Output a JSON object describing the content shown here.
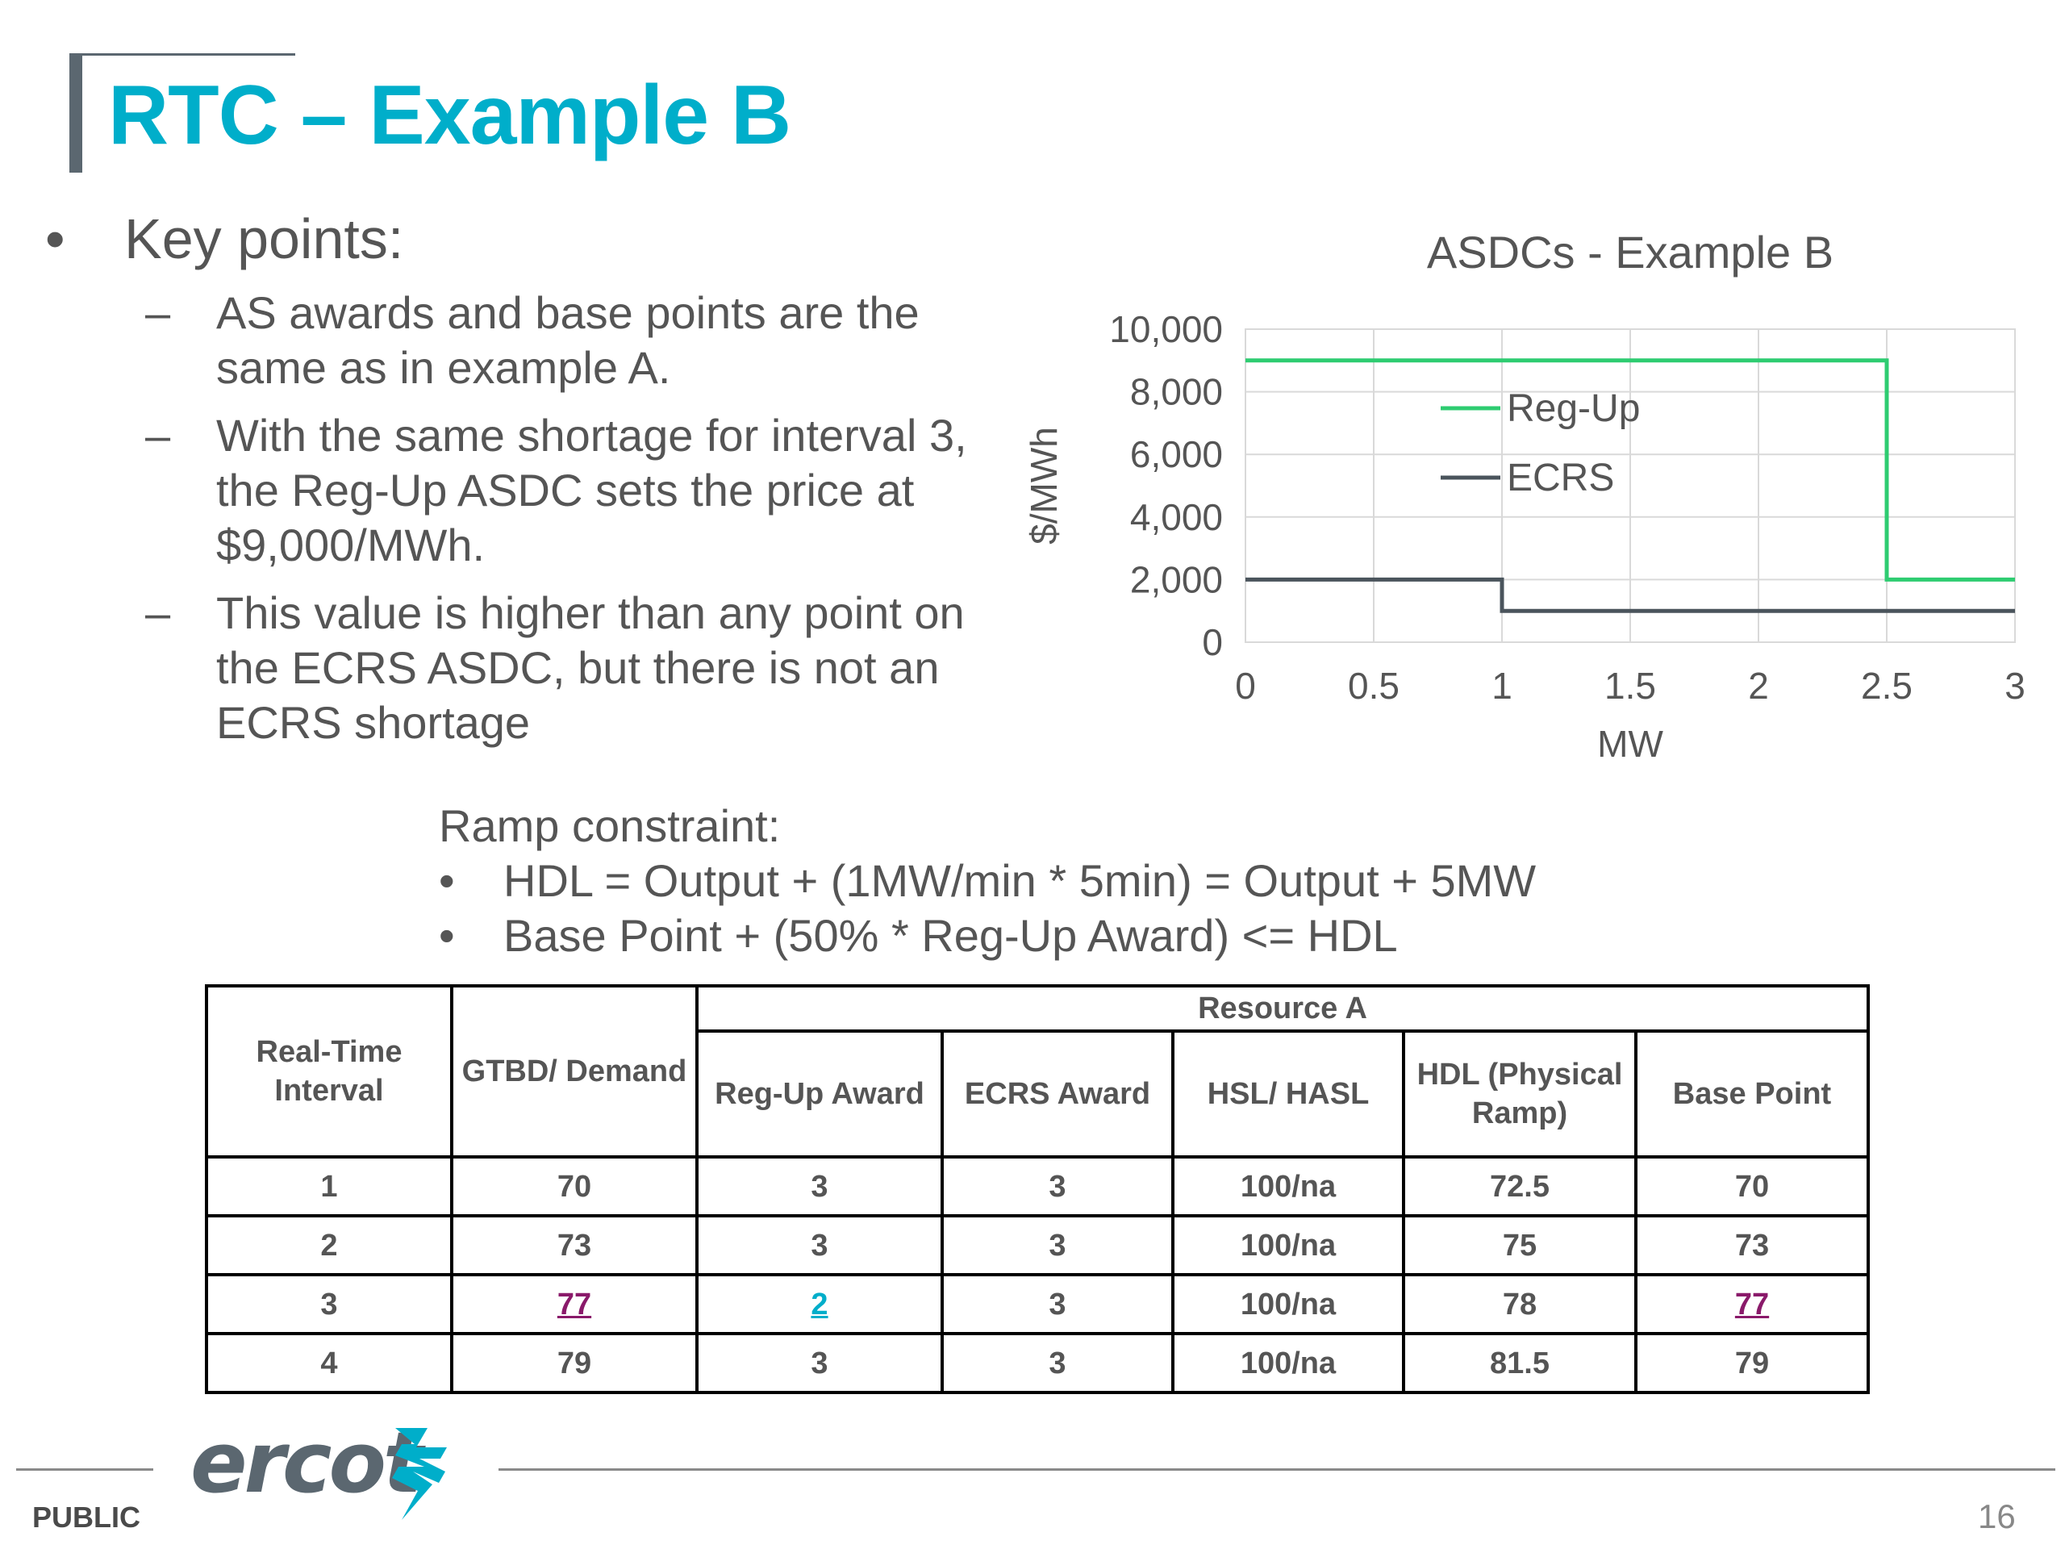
{
  "title": "RTC – Example B",
  "key_points": {
    "bullet": "•",
    "label": "Key points:",
    "dash": "–",
    "items": [
      "AS awards and base points are the same as in example A.",
      "With the same shortage for interval 3, the Reg-Up ASDC sets the price at $9,000/MWh.",
      "This value is higher than any point on the ECRS ASDC, but there is not an ECRS shortage"
    ]
  },
  "chart_data": {
    "type": "line",
    "title": "ASDCs - Example B",
    "xlabel": "MW",
    "ylabel": "$/MWh",
    "xlim": [
      0,
      3
    ],
    "ylim": [
      0,
      10000
    ],
    "x_ticks": [
      "0",
      "0.5",
      "1",
      "1.5",
      "2",
      "2.5",
      "3"
    ],
    "x_tick_values": [
      0,
      0.5,
      1,
      1.5,
      2,
      2.5,
      3
    ],
    "y_ticks": [
      "0",
      "2,000",
      "4,000",
      "6,000",
      "8,000",
      "10,000"
    ],
    "y_tick_values": [
      0,
      2000,
      4000,
      6000,
      8000,
      10000
    ],
    "grid": true,
    "legend_position": "inside-left",
    "series": [
      {
        "name": "Reg-Up",
        "color": "#2ecc71",
        "x": [
          0,
          2.5,
          2.5,
          3
        ],
        "y": [
          9000,
          9000,
          2000,
          2000
        ]
      },
      {
        "name": "ECRS",
        "color": "#4a545c",
        "x": [
          0,
          1,
          1,
          3
        ],
        "y": [
          2000,
          2000,
          1000,
          1000
        ]
      }
    ]
  },
  "ramp": {
    "heading": "Ramp constraint:",
    "bullet": "•",
    "items": [
      "HDL =  Output + (1MW/min * 5min) = Output + 5MW",
      "Base Point + (50% * Reg-Up Award) <= HDL"
    ]
  },
  "table": {
    "group_header": "Resource A",
    "col_interval": "Real-Time Interval",
    "col_demand": "GTBD/ Demand",
    "col_regup": "Reg-Up Award",
    "col_ecrs": "ECRS Award",
    "col_hsl": "HSL/ HASL",
    "col_hdl": "HDL (Physical Ramp)",
    "col_base": "Base Point",
    "rows": [
      [
        "1",
        "70",
        "3",
        "3",
        "100/na",
        "72.5",
        "70"
      ],
      [
        "2",
        "73",
        "3",
        "3",
        "100/na",
        "75",
        "73"
      ],
      [
        "3",
        "77",
        "2",
        "3",
        "100/na",
        "78",
        "77"
      ],
      [
        "4",
        "79",
        "3",
        "3",
        "100/na",
        "81.5",
        "79"
      ]
    ],
    "highlight_colors": {
      "purple": "#8a1a6a",
      "blue": "#00aeca"
    }
  },
  "footer": {
    "classification": "PUBLIC",
    "logo_text": "ercot",
    "page_number": "16"
  },
  "colors": {
    "title": "#00aeca",
    "text": "#555555",
    "accent_bar": "#5b6770"
  }
}
